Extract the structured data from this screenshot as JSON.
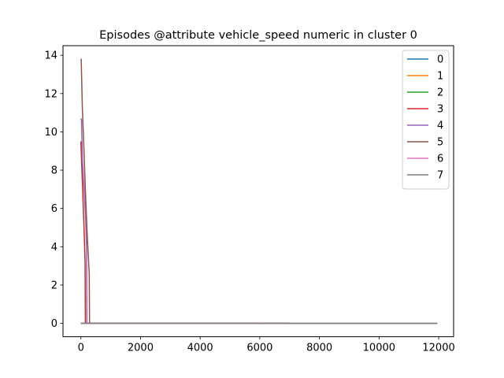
{
  "chart_data": {
    "type": "line",
    "title": "Episodes @attribute vehicle_speed numeric in cluster 0",
    "xlabel": "",
    "ylabel": "",
    "xlim": [
      -600,
      12500
    ],
    "ylim": [
      -0.7,
      14.5
    ],
    "xticks": [
      0,
      2000,
      4000,
      6000,
      8000,
      10000,
      12000
    ],
    "yticks": [
      0,
      2,
      4,
      6,
      8,
      10,
      12,
      14
    ],
    "grid": false,
    "legend_position": "top-right",
    "series": [
      {
        "name": "0",
        "color": "#1f77b4",
        "x": [
          0,
          100,
          11950
        ],
        "y": [
          0,
          0,
          0
        ]
      },
      {
        "name": "1",
        "color": "#ff7f0e",
        "x": [
          0,
          100,
          6000
        ],
        "y": [
          0,
          0,
          0
        ]
      },
      {
        "name": "2",
        "color": "#2ca02c",
        "x": [
          0,
          100,
          7000
        ],
        "y": [
          0,
          0,
          0
        ]
      },
      {
        "name": "3",
        "color": "#d62728",
        "x": [
          0,
          30,
          70,
          110,
          140,
          150,
          7000
        ],
        "y": [
          9.5,
          8.2,
          6.5,
          4.8,
          3.2,
          0,
          0
        ]
      },
      {
        "name": "4",
        "color": "#9467bd",
        "x": [
          0,
          20,
          50,
          100,
          160,
          190,
          200,
          6000
        ],
        "y": [
          10.7,
          10.6,
          8.5,
          7.2,
          5.5,
          4.0,
          0,
          0
        ]
      },
      {
        "name": "5",
        "color": "#8c564b",
        "x": [
          0,
          10,
          50,
          100,
          150,
          200,
          250,
          280,
          290,
          11950
        ],
        "y": [
          13.8,
          13.8,
          11.2,
          9.2,
          7.0,
          5.0,
          3.5,
          2.6,
          0,
          0
        ]
      },
      {
        "name": "6",
        "color": "#e377c2",
        "x": [
          0,
          100,
          6000
        ],
        "y": [
          0,
          0,
          0
        ]
      },
      {
        "name": "7",
        "color": "#7f7f7f",
        "x": [
          0,
          100,
          11950
        ],
        "y": [
          0,
          0,
          0
        ]
      }
    ]
  }
}
